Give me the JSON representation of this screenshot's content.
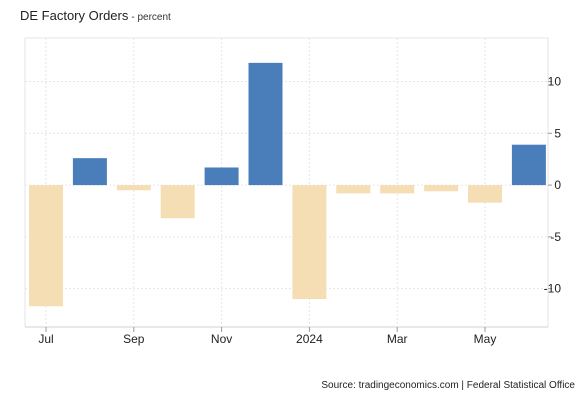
{
  "header": {
    "title": "DE Factory Orders",
    "subtitle": "- percent"
  },
  "footer": {
    "source": "Source: tradingeconomics.com | Federal Statistical Office"
  },
  "chart_data": {
    "type": "bar",
    "title": "DE Factory Orders",
    "subtitle": "- percent",
    "xlabel": "",
    "ylabel": "",
    "categories": [
      "2023-07",
      "2023-08",
      "2023-09",
      "2023-10",
      "2023-11",
      "2023-12",
      "2024-01",
      "2024-02",
      "2024-03",
      "2024-04",
      "2024-05",
      "2024-06"
    ],
    "values": [
      -11.7,
      2.6,
      -0.5,
      -3.2,
      1.7,
      11.8,
      -11.0,
      -0.8,
      -0.8,
      -0.6,
      -1.7,
      3.9
    ],
    "x_tick_labels": [
      {
        "index": 0,
        "label": "Jul"
      },
      {
        "index": 2,
        "label": "Sep"
      },
      {
        "index": 4,
        "label": "Nov"
      },
      {
        "index": 6,
        "label": "2024"
      },
      {
        "index": 8,
        "label": "Mar"
      },
      {
        "index": 10,
        "label": "May"
      }
    ],
    "y_ticks": [
      10,
      5,
      0,
      -5,
      -10
    ],
    "ylim": [
      -13.7,
      14.2
    ],
    "y_axis_position": "right",
    "grid": true,
    "colors": {
      "positive": "#4a7ebb",
      "negative": "#f5deb3",
      "grid": "#e6e6e6",
      "axis": "#d0d0d0"
    }
  }
}
